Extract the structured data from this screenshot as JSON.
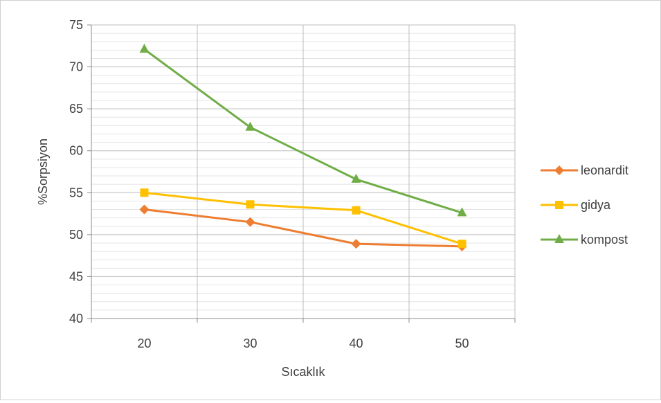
{
  "chart_data": {
    "type": "line",
    "title": "",
    "xlabel": "Sıcaklık",
    "ylabel": "%Sorpsiyon",
    "categories": [
      "20",
      "30",
      "40",
      "50"
    ],
    "ylim": [
      40,
      75
    ],
    "ytick_step": 5,
    "yticks": [
      "40",
      "45",
      "50",
      "55",
      "60",
      "65",
      "70",
      "75"
    ],
    "minor_grid_step": 1,
    "grid": true,
    "legend_position": "right",
    "series": [
      {
        "name": "leonardit",
        "values": [
          53.0,
          51.5,
          48.9,
          48.6
        ],
        "color": "#ED7D31",
        "marker": "diamond"
      },
      {
        "name": "gidya",
        "values": [
          55.0,
          53.6,
          52.9,
          48.9
        ],
        "color": "#FFC000",
        "marker": "square"
      },
      {
        "name": "kompost",
        "values": [
          72.1,
          62.8,
          56.6,
          52.6
        ],
        "color": "#70AD47",
        "marker": "triangle"
      }
    ]
  }
}
